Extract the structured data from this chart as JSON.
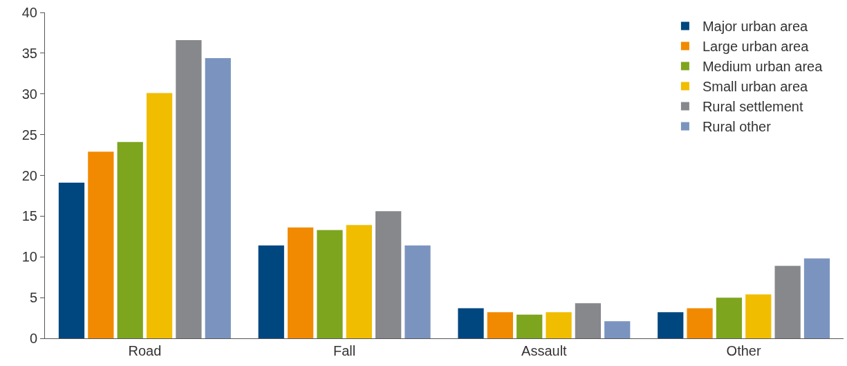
{
  "chart_data": {
    "type": "bar",
    "categories": [
      "Road",
      "Fall",
      "Assault",
      "Other"
    ],
    "series": [
      {
        "name": "Major urban area",
        "color": "#00467f",
        "values": [
          19.1,
          11.4,
          3.7,
          3.2
        ]
      },
      {
        "name": "Large urban area",
        "color": "#f18a00",
        "values": [
          22.9,
          13.6,
          3.2,
          3.7
        ]
      },
      {
        "name": "Medium urban area",
        "color": "#7ea51e",
        "values": [
          24.1,
          13.3,
          2.9,
          5.0
        ]
      },
      {
        "name": "Small urban area",
        "color": "#f0bd00",
        "values": [
          30.1,
          13.9,
          3.2,
          5.4
        ]
      },
      {
        "name": "Rural settlement",
        "color": "#87888c",
        "values": [
          36.6,
          15.6,
          4.3,
          8.9
        ]
      },
      {
        "name": "Rural other",
        "color": "#7b94bf",
        "values": [
          34.4,
          11.4,
          2.1,
          9.8
        ]
      }
    ],
    "ylim": [
      0,
      40
    ],
    "yticks": [
      0,
      5,
      10,
      15,
      20,
      25,
      30,
      35,
      40
    ],
    "legend": "top right"
  }
}
